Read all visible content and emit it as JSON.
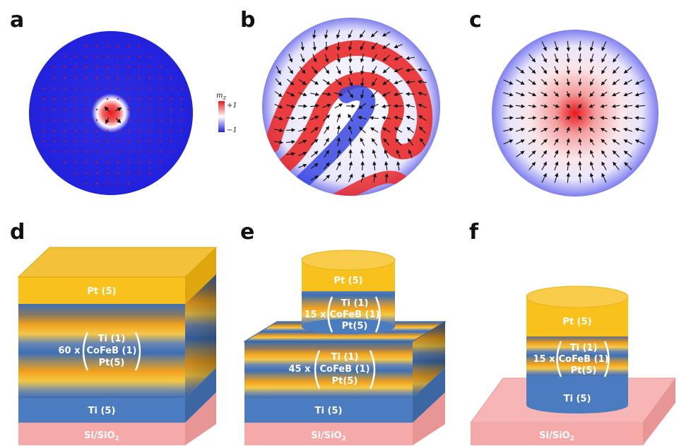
{
  "panels": {
    "a": {
      "letter": "a"
    },
    "b": {
      "letter": "b"
    },
    "c": {
      "letter": "c"
    },
    "d": {
      "letter": "d",
      "top": "Pt (5)",
      "multiplier": "60 x",
      "repeat": [
        "Ti (1)",
        "CoFeB (1)",
        "Pt(5)"
      ],
      "bottom": "Ti (5)",
      "substrate": "Si/SiO",
      "substrate_sub": "2"
    },
    "e": {
      "letter": "e",
      "top": "Pt (5)",
      "pillar_multiplier": "15 x",
      "pillar_repeat": [
        "Ti (1)",
        "CoFeB (1)",
        "Pt(5)"
      ],
      "base_multiplier": "45 x",
      "base_repeat": [
        "Ti (1)",
        "CoFeB (1)",
        "Pt(5)"
      ],
      "bottom": "Ti (5)",
      "substrate": "Si/SiO",
      "substrate_sub": "2"
    },
    "f": {
      "letter": "f",
      "top": "Pt (5)",
      "multiplier": "15 x",
      "repeat": [
        "Ti (1)",
        "CoFeB (1)",
        "Pt(5)"
      ],
      "bottom": "Ti (5)",
      "substrate": "Si/SiO",
      "substrate_sub": "2"
    }
  },
  "legend": {
    "title": "m",
    "title_sub": "z",
    "max": "+1",
    "min": "−1"
  },
  "colors": {
    "pt": "#f7c22c",
    "ti": "#4a7cbf",
    "substrate": "#f6a9a9",
    "mz_plus": "#e8181c",
    "mz_minus": "#2222dd"
  }
}
